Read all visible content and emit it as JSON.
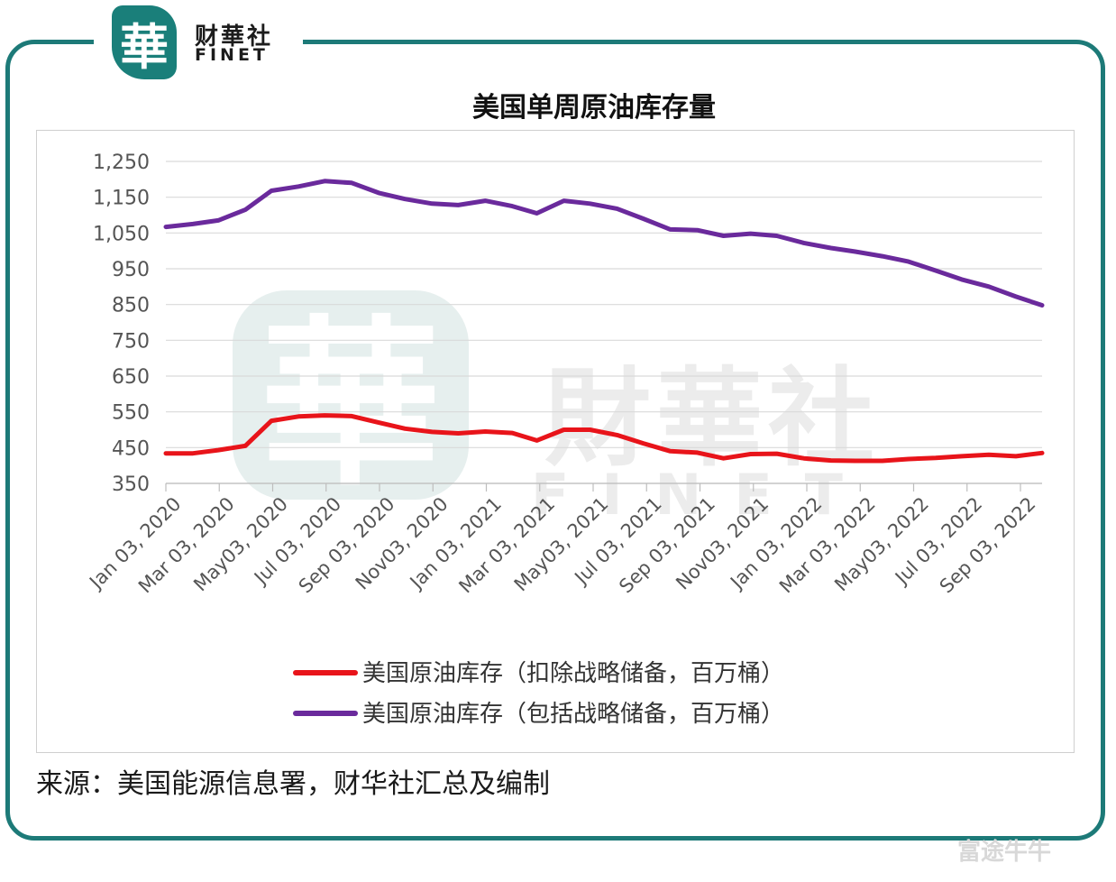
{
  "brand": {
    "seal": "華",
    "cn": "财華社",
    "en": "FINET",
    "watermark_cn": "財華社",
    "watermark_en": "FINET"
  },
  "title": "美国单周原油库存量",
  "source": "来源：美国能源信息署，财华社汇总及编制",
  "corner_watermark": "富途牛牛",
  "colors": {
    "frame": "#1d7a78",
    "series_red": "#e8141a",
    "series_purple": "#6a2a9c",
    "grid": "#d9d9d9"
  },
  "chart_data": {
    "type": "line",
    "title": "美国单周原油库存量",
    "xlabel": "",
    "ylabel": "",
    "ylim": [
      350,
      1250
    ],
    "yticks": [
      "1,250",
      "1,150",
      "1,050",
      "950",
      "850",
      "750",
      "650",
      "550",
      "450",
      "350"
    ],
    "ytick_values": [
      1250,
      1150,
      1050,
      950,
      850,
      750,
      650,
      550,
      450,
      350
    ],
    "xticks": [
      "Jan 03, 2020",
      "Mar 03, 2020",
      "May03, 2020",
      "Jul 03, 2020",
      "Sep 03, 2020",
      "Nov03, 2020",
      "Jan 03, 2021",
      "Mar 03, 2021",
      "May03, 2021",
      "Jul 03, 2021",
      "Sep 03, 2021",
      "Nov03, 2021",
      "Jan 03, 2022",
      "Mar 03, 2022",
      "May03, 2022",
      "Jul 03, 2022",
      "Sep 03, 2022"
    ],
    "grid": true,
    "legend_position": "bottom",
    "x": [
      "2020-01-03",
      "2020-02-03",
      "2020-03-03",
      "2020-04-03",
      "2020-05-03",
      "2020-06-03",
      "2020-07-03",
      "2020-08-03",
      "2020-09-03",
      "2020-10-03",
      "2020-11-03",
      "2020-12-03",
      "2021-01-03",
      "2021-02-03",
      "2021-03-03",
      "2021-04-03",
      "2021-05-03",
      "2021-06-03",
      "2021-07-03",
      "2021-08-03",
      "2021-09-03",
      "2021-10-03",
      "2021-11-03",
      "2021-12-03",
      "2022-01-03",
      "2022-02-03",
      "2022-03-03",
      "2022-04-03",
      "2022-05-03",
      "2022-06-03",
      "2022-07-03",
      "2022-08-03",
      "2022-09-03",
      "2022-10-03"
    ],
    "series": [
      {
        "name": "美国原油库存（扣除战略储备，百万桶）",
        "color": "#e8141a",
        "values": [
          434,
          434,
          443,
          455,
          525,
          537,
          540,
          538,
          520,
          503,
          494,
          490,
          495,
          491,
          470,
          500,
          500,
          485,
          462,
          440,
          436,
          420,
          432,
          433,
          420,
          414,
          413,
          413,
          418,
          421,
          426,
          430,
          426,
          435
        ]
      },
      {
        "name": "美国原油库存（包括战略储备，百万桶）",
        "color": "#6a2a9c",
        "values": [
          1067,
          1075,
          1085,
          1115,
          1168,
          1180,
          1195,
          1190,
          1162,
          1145,
          1132,
          1128,
          1140,
          1125,
          1105,
          1140,
          1132,
          1118,
          1090,
          1060,
          1058,
          1042,
          1048,
          1042,
          1022,
          1008,
          998,
          985,
          970,
          945,
          920,
          900,
          872,
          848
        ]
      }
    ]
  }
}
